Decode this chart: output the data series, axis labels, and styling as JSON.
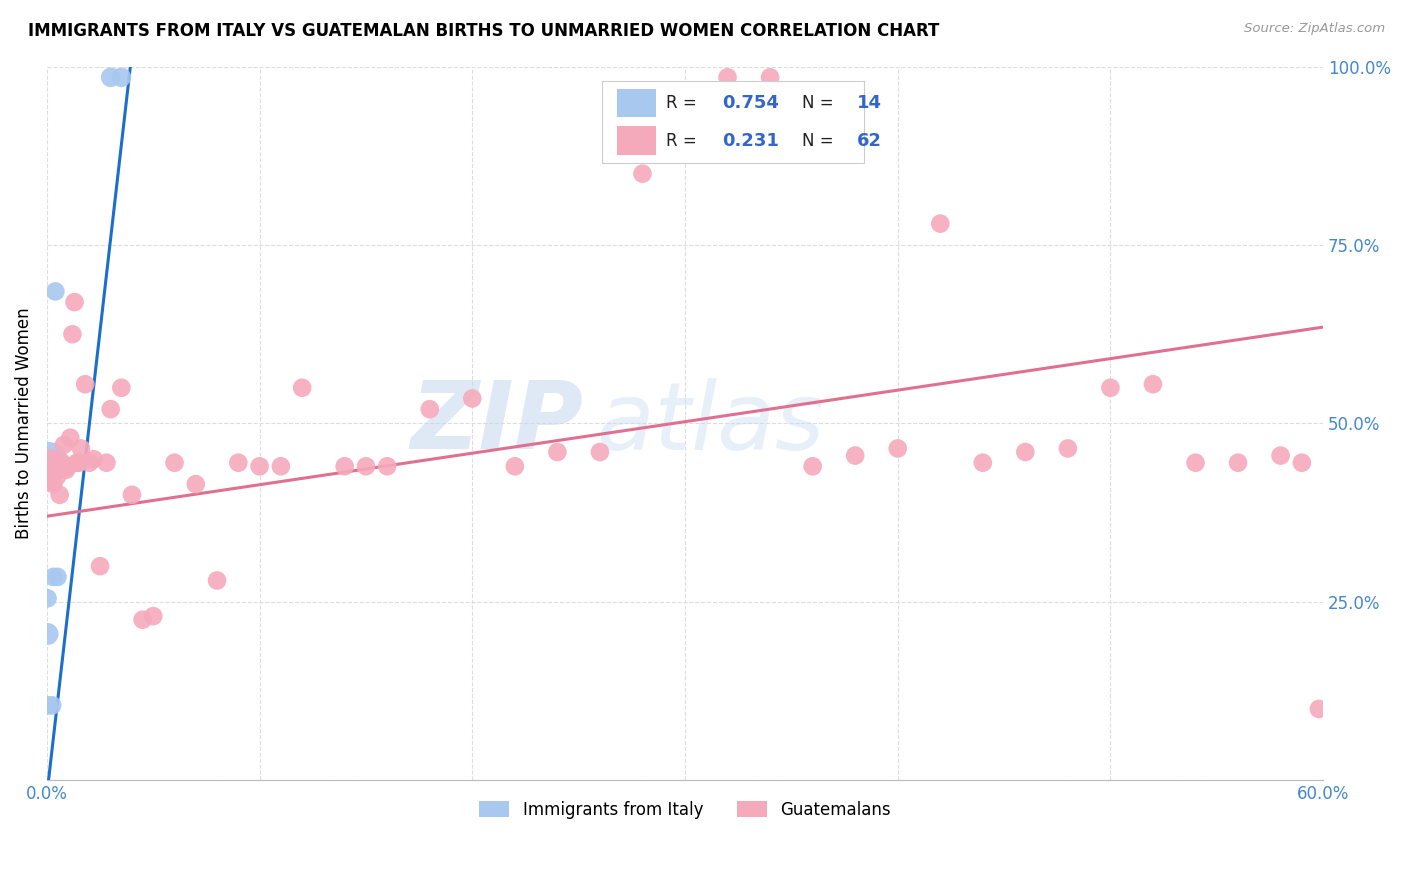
{
  "title": "IMMIGRANTS FROM ITALY VS GUATEMALAN BIRTHS TO UNMARRIED WOMEN CORRELATION CHART",
  "source": "Source: ZipAtlas.com",
  "ylabel": "Births to Unmarried Women",
  "yticks": [
    0.0,
    0.25,
    0.5,
    0.75,
    1.0
  ],
  "ytick_labels": [
    "",
    "25.0%",
    "50.0%",
    "75.0%",
    "100.0%"
  ],
  "legend_blue_rv": "0.754",
  "legend_blue_nv": "14",
  "legend_pink_rv": "0.231",
  "legend_pink_nv": "62",
  "blue_color": "#a8c8f0",
  "pink_color": "#f5aabc",
  "blue_line_color": "#1a6fcc",
  "pink_line_color": "#e07090",
  "watermark_zip": "ZIP",
  "watermark_atlas": "atlas",
  "watermark_color_zip": "#c8dff5",
  "watermark_color_atlas": "#c8dff5",
  "blue_points_x": [
    0.03,
    0.035,
    0.004,
    0.002,
    0.001,
    0.0005,
    0.001,
    0.003,
    0.005,
    0.003,
    0.0003,
    0.0003,
    0.0008,
    0.0025
  ],
  "blue_points_y": [
    0.985,
    0.985,
    0.685,
    0.445,
    0.445,
    0.445,
    0.445,
    0.45,
    0.285,
    0.285,
    0.255,
    0.205,
    0.105,
    0.105
  ],
  "blue_sizes": [
    200,
    200,
    180,
    180,
    300,
    900,
    180,
    180,
    180,
    180,
    180,
    250,
    180,
    180
  ],
  "pink_points_x": [
    0.0003,
    0.001,
    0.001,
    0.002,
    0.003,
    0.003,
    0.004,
    0.005,
    0.006,
    0.007,
    0.008,
    0.009,
    0.01,
    0.011,
    0.012,
    0.013,
    0.014,
    0.015,
    0.016,
    0.018,
    0.02,
    0.022,
    0.025,
    0.028,
    0.03,
    0.035,
    0.04,
    0.045,
    0.05,
    0.06,
    0.07,
    0.08,
    0.09,
    0.1,
    0.11,
    0.12,
    0.14,
    0.15,
    0.16,
    0.18,
    0.2,
    0.22,
    0.24,
    0.26,
    0.28,
    0.3,
    0.32,
    0.34,
    0.36,
    0.38,
    0.4,
    0.42,
    0.44,
    0.46,
    0.48,
    0.5,
    0.52,
    0.54,
    0.56,
    0.58,
    0.59,
    0.598
  ],
  "pink_points_y": [
    0.435,
    0.435,
    0.445,
    0.425,
    0.415,
    0.445,
    0.445,
    0.445,
    0.4,
    0.445,
    0.47,
    0.435,
    0.44,
    0.48,
    0.625,
    0.67,
    0.445,
    0.445,
    0.465,
    0.555,
    0.445,
    0.45,
    0.3,
    0.445,
    0.52,
    0.55,
    0.4,
    0.225,
    0.23,
    0.445,
    0.415,
    0.28,
    0.445,
    0.44,
    0.44,
    0.55,
    0.44,
    0.44,
    0.44,
    0.52,
    0.535,
    0.44,
    0.46,
    0.46,
    0.85,
    0.93,
    0.985,
    0.985,
    0.44,
    0.455,
    0.465,
    0.78,
    0.445,
    0.46,
    0.465,
    0.55,
    0.555,
    0.445,
    0.445,
    0.455,
    0.445,
    0.1
  ],
  "pink_sizes": [
    900,
    180,
    180,
    180,
    180,
    180,
    180,
    180,
    180,
    180,
    180,
    180,
    180,
    180,
    180,
    180,
    180,
    180,
    180,
    180,
    180,
    180,
    180,
    180,
    180,
    180,
    180,
    180,
    180,
    180,
    180,
    180,
    180,
    180,
    180,
    180,
    180,
    180,
    180,
    180,
    180,
    180,
    180,
    180,
    180,
    180,
    180,
    180,
    180,
    180,
    180,
    180,
    180,
    180,
    180,
    180,
    180,
    180,
    180,
    180,
    180,
    180
  ],
  "blue_trend_x": [
    0.0,
    0.04
  ],
  "blue_trend_y": [
    -0.02,
    1.02
  ],
  "pink_trend_x": [
    0.0,
    0.6
  ],
  "pink_trend_y": [
    0.37,
    0.635
  ],
  "xmin": 0.0,
  "xmax": 0.6,
  "ymin": 0.0,
  "ymax": 1.0,
  "x_tick_vals": [
    0.0,
    0.1,
    0.2,
    0.3,
    0.4,
    0.5,
    0.6
  ],
  "x_tick_labels": [
    "0.0%",
    "",
    "",
    "",
    "",
    "",
    "60.0%"
  ]
}
